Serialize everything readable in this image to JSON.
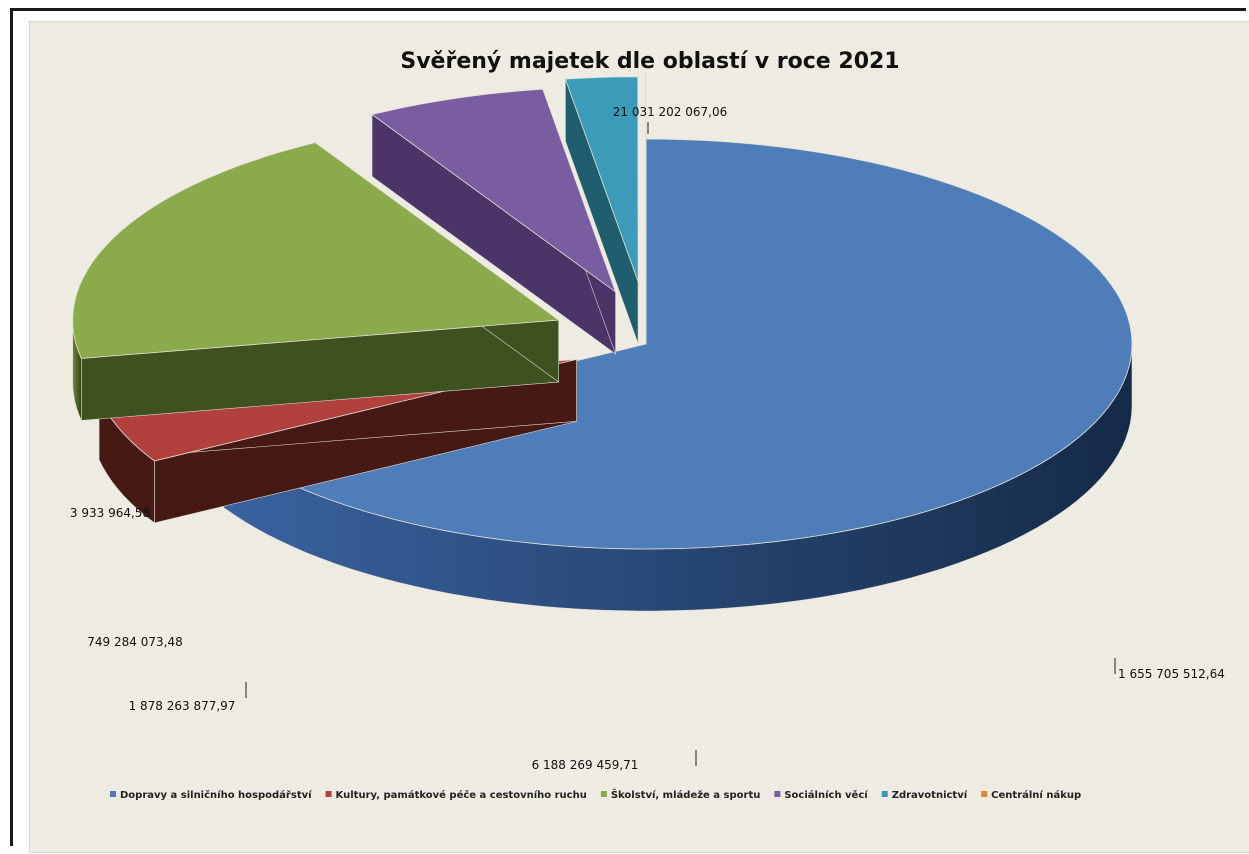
{
  "chart_data": {
    "type": "pie",
    "style": "3d-exploded",
    "title": "Svěřený majetek dle oblastí v roce 2021",
    "legend_position": "bottom",
    "series": [
      {
        "name": "",
        "slices": [
          {
            "label": "Dopravy a silničního hospodářství",
            "value": 21031202067.06,
            "value_text": "21 031 202 067,06",
            "color": "#4f7dba",
            "side_color": "#1e3556"
          },
          {
            "label": "Kultury, památkové péče a cestovního ruchu",
            "value": 1655705512.64,
            "value_text": "1 655 705 512,64",
            "color": "#b2413e",
            "side_color": "#461915"
          },
          {
            "label": "Školství, mládeže a sportu",
            "value": 6188269459.71,
            "value_text": "6 188 269 459,71",
            "color": "#8aaa4b",
            "side_color": "#3e5220"
          },
          {
            "label": "Sociálních věcí",
            "value": 1878263877.97,
            "value_text": "1 878 263 877,97",
            "color": "#7a5ca1",
            "side_color": "#4a3468"
          },
          {
            "label": "Zdravotnictví",
            "value": 749284073.48,
            "value_text": "749 284 073,48",
            "color": "#3c9bb8",
            "side_color": "#1e5e6e"
          },
          {
            "label": "Centrální nákup",
            "value": 3933964.58,
            "value_text": "3 933 964,58",
            "color": "#e0862e",
            "side_color": "#7a4110"
          }
        ]
      }
    ]
  }
}
